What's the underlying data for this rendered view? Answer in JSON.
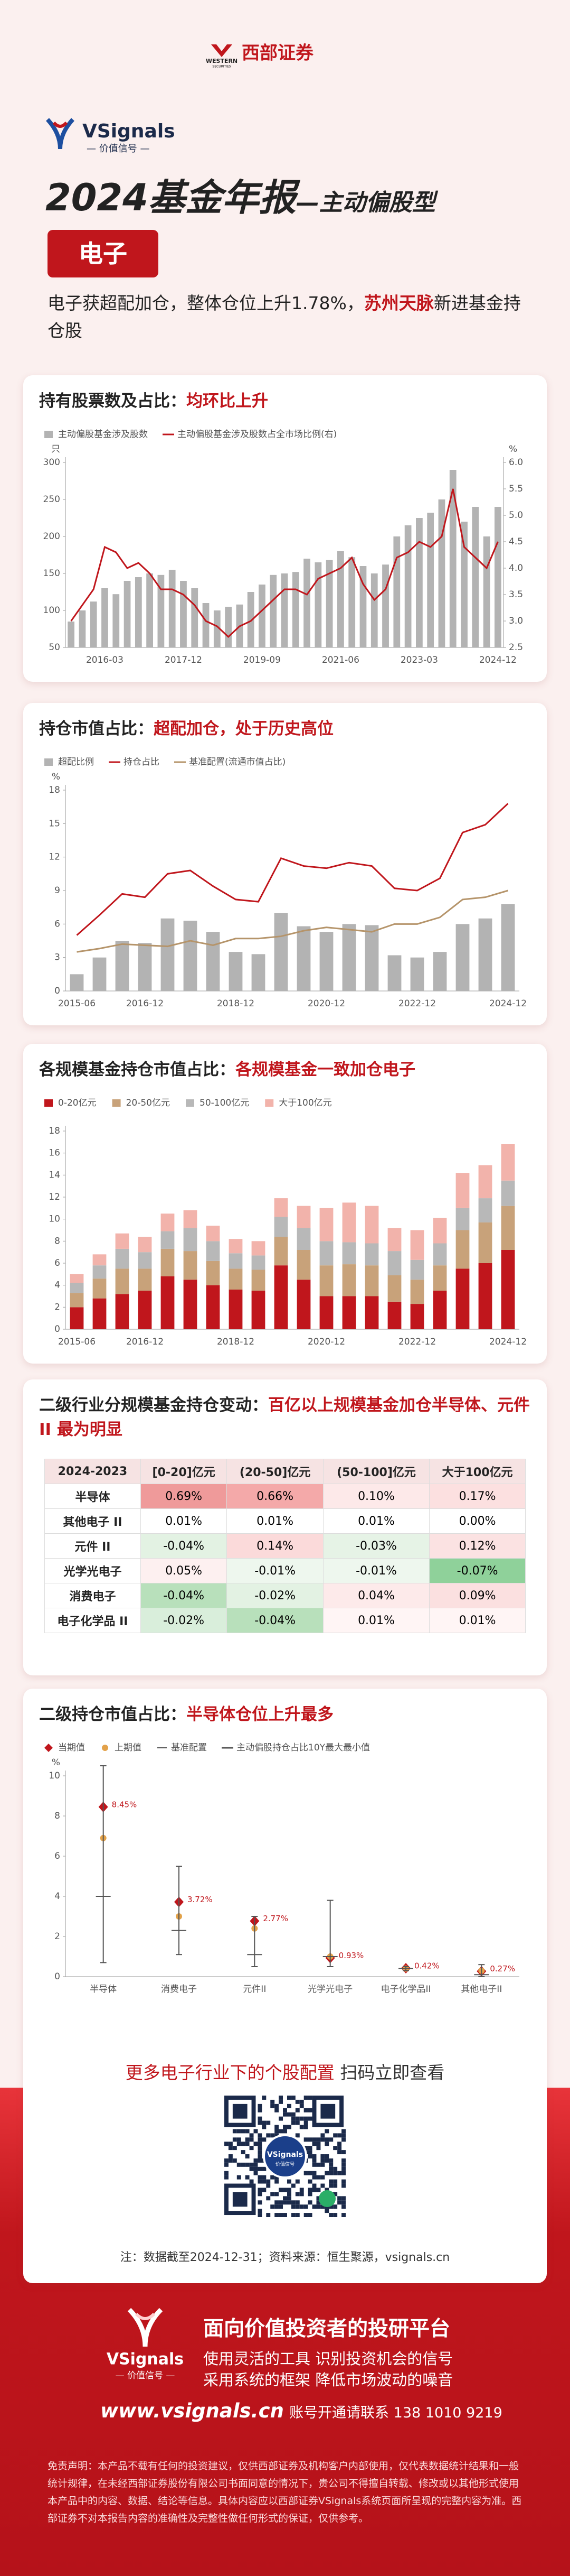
{
  "header": {
    "logo_en": "WESTERN",
    "logo_en2": "SECURITIES",
    "logo_cn": "西部证券",
    "brand": "VSignals",
    "brand_sub": "— 价值信号 —",
    "title": "2024基金年报",
    "title_suffix": "—主动偏股型",
    "tag": "电子",
    "summary": [
      "电子获超配加仓，整体仓位上升1.78%，",
      "苏州天脉",
      "新进基金持仓股"
    ]
  },
  "sections": [
    {
      "title": "持有股票数及占比：",
      "highlight": "均环比上升"
    },
    {
      "title": "持仓市值占比：",
      "highlight": "超配加仓，处于历史高位"
    },
    {
      "title": "各规模基金持仓市值占比：",
      "highlight": "各规模基金一致加仓电子"
    },
    {
      "title": "二级行业分规模基金持仓变动：",
      "highlight": "百亿以上规模基金加仓半导体、元件 II 最为明显"
    },
    {
      "title": "二级持仓市值占比：",
      "highlight": "半导体仓位上升最多"
    }
  ],
  "chart_data": [
    {
      "type": "combo",
      "ylabel": "只",
      "y2label": "%",
      "ylim": [
        50,
        300
      ],
      "yticks": [
        50,
        100,
        150,
        200,
        250,
        300
      ],
      "y2lim": [
        2.5,
        6.0
      ],
      "y2ticks": [
        2.5,
        {
          "value": 3,
          "label": "3.0"
        },
        3.5,
        {
          "value": 4,
          "label": "4.0"
        },
        4.5,
        {
          "value": 5,
          "label": "5.0"
        },
        5.5,
        {
          "value": 6,
          "label": "6.0"
        }
      ],
      "categories": [
        null,
        null,
        null,
        "2016-03",
        null,
        null,
        null,
        null,
        null,
        null,
        "2017-12",
        null,
        null,
        null,
        null,
        null,
        null,
        "2019-09",
        null,
        null,
        null,
        null,
        null,
        null,
        "2021-06",
        null,
        null,
        null,
        null,
        null,
        null,
        "2023-03",
        null,
        null,
        null,
        null,
        null,
        null,
        "2024-12"
      ],
      "series": [
        {
          "name": "主动偏股基金涉及股数",
          "type": "bar",
          "color": "#b3b3b3",
          "values": [
            85,
            100,
            112,
            130,
            122,
            140,
            145,
            150,
            148,
            155,
            140,
            130,
            110,
            100,
            105,
            108,
            125,
            135,
            148,
            150,
            152,
            170,
            165,
            168,
            180,
            172,
            160,
            150,
            162,
            200,
            215,
            225,
            232,
            250,
            290,
            220,
            240,
            200,
            240
          ]
        },
        {
          "name": "主动偏股基金涉及股数占全市场比例(右)",
          "type": "line",
          "axis": "y2",
          "color": "#c0161c",
          "values": [
            3.0,
            3.3,
            3.6,
            4.4,
            4.3,
            4.0,
            4.1,
            3.9,
            3.6,
            3.6,
            3.5,
            3.3,
            3.0,
            2.9,
            2.7,
            2.9,
            3.0,
            3.2,
            3.4,
            3.6,
            3.6,
            3.5,
            3.8,
            3.9,
            4.0,
            4.2,
            3.7,
            3.4,
            3.6,
            4.2,
            4.3,
            4.5,
            4.4,
            4.6,
            5.5,
            4.4,
            4.2,
            4.0,
            4.5
          ]
        }
      ]
    },
    {
      "type": "combo",
      "ylabel": "%",
      "ylim": [
        0,
        18
      ],
      "yticks": [
        0,
        3,
        6,
        9,
        12,
        15,
        18
      ],
      "categories": [
        "2015-06",
        null,
        null,
        "2016-12",
        null,
        null,
        null,
        "2018-12",
        null,
        null,
        null,
        "2020-12",
        null,
        null,
        null,
        "2022-12",
        null,
        null,
        null,
        "2024-12"
      ],
      "series": [
        {
          "name": "超配比例",
          "type": "bar",
          "color": "#b3b3b3",
          "values": [
            1.5,
            3.0,
            4.5,
            4.3,
            6.5,
            6.3,
            5.3,
            3.5,
            3.3,
            7.0,
            5.8,
            5.3,
            6.0,
            5.9,
            3.2,
            3.0,
            3.5,
            6.0,
            6.5,
            7.8
          ]
        },
        {
          "name": "持仓占比",
          "type": "line",
          "color": "#c0161c",
          "values": [
            5.0,
            6.8,
            8.7,
            8.4,
            10.5,
            10.8,
            9.4,
            8.2,
            8.0,
            11.9,
            11.2,
            11.0,
            11.5,
            11.2,
            9.2,
            9.0,
            10.1,
            14.2,
            14.9,
            16.8
          ]
        },
        {
          "name": "基准配置(流通市值占比)",
          "type": "line",
          "color": "#b5946a",
          "values": [
            3.5,
            3.8,
            4.2,
            4.1,
            4.0,
            4.5,
            4.1,
            4.7,
            4.7,
            4.9,
            5.4,
            5.7,
            5.5,
            5.3,
            6.0,
            6.0,
            6.6,
            8.2,
            8.4,
            9.0
          ]
        }
      ]
    },
    {
      "type": "stacked_bar",
      "ylim": [
        0,
        18
      ],
      "yticks": [
        0,
        2,
        4,
        6,
        8,
        10,
        12,
        14,
        16,
        18
      ],
      "categories": [
        "2015-06",
        null,
        null,
        "2016-12",
        null,
        null,
        null,
        "2018-12",
        null,
        null,
        null,
        "2020-12",
        null,
        null,
        null,
        "2022-12",
        null,
        null,
        null,
        "2024-12"
      ],
      "series": [
        {
          "name": "0-20亿元",
          "type": "bar",
          "color": "#c0161c",
          "values": [
            2.0,
            2.8,
            3.2,
            3.5,
            4.8,
            4.5,
            4.0,
            3.6,
            3.5,
            5.8,
            4.5,
            3.0,
            3.0,
            3.0,
            2.5,
            2.3,
            3.5,
            5.5,
            6.0,
            7.2
          ]
        },
        {
          "name": "20-50亿元",
          "type": "bar",
          "color": "#c8a27a",
          "values": [
            1.3,
            1.8,
            2.3,
            2.0,
            2.5,
            2.6,
            2.2,
            1.9,
            1.9,
            2.6,
            2.7,
            2.8,
            2.9,
            2.8,
            2.4,
            2.2,
            2.3,
            3.5,
            3.7,
            4.0
          ]
        },
        {
          "name": "50-100亿元",
          "type": "bar",
          "color": "#b8b8b8",
          "values": [
            0.9,
            1.2,
            1.8,
            1.5,
            1.6,
            2.1,
            1.8,
            1.4,
            1.3,
            1.8,
            2.0,
            2.2,
            2.0,
            2.0,
            2.2,
            1.8,
            2.0,
            2.0,
            2.2,
            2.3
          ]
        },
        {
          "name": "大于100亿元",
          "type": "bar",
          "color": "#f2b3ab",
          "values": [
            0.8,
            1.0,
            1.4,
            1.4,
            1.6,
            1.6,
            1.4,
            1.3,
            1.3,
            1.7,
            2.0,
            3.0,
            3.6,
            3.4,
            2.1,
            2.7,
            2.3,
            3.2,
            3.0,
            3.3
          ]
        }
      ]
    },
    {
      "type": "range",
      "ylabel": "%",
      "ylim": [
        0,
        10
      ],
      "yticks": [
        0,
        2,
        4,
        6,
        8,
        10
      ],
      "categories": [
        "半导体",
        "消费电子",
        "元件II",
        "光学光电子",
        "电子化学品II",
        "其他电子II"
      ],
      "series": [
        {
          "name": "当期值",
          "type": "diamond",
          "color": "#c0161c",
          "values": [
            8.45,
            3.72,
            2.77,
            0.93,
            0.42,
            0.27
          ],
          "value_labels": [
            "8.45%",
            "3.72%",
            "2.77%",
            "0.93%",
            "0.42%",
            "0.27%"
          ]
        },
        {
          "name": "上期值",
          "type": "dot",
          "color": "#e3a24a",
          "values": [
            6.9,
            3.0,
            2.4,
            1.0,
            0.4,
            0.3
          ]
        },
        {
          "name": "基准配置",
          "type": "dash",
          "color": "#555555",
          "values": [
            4.0,
            2.3,
            1.1,
            1.0,
            0.4,
            0.1
          ]
        },
        {
          "name": "主动偏股持仓占比10Y最大最小值",
          "type": "range",
          "color": "#555555",
          "low": [
            0.7,
            1.1,
            0.5,
            0.5,
            0.3,
            0.0
          ],
          "high": [
            10.5,
            5.5,
            3.0,
            3.8,
            0.5,
            0.6
          ]
        }
      ]
    }
  ],
  "table": {
    "header": [
      "2024-2023",
      "[0-20]亿元",
      "(20-50]亿元",
      "(50-100]亿元",
      "大于100亿元"
    ],
    "rows": [
      [
        "半导体",
        "0.69%",
        "0.66%",
        "0.10%",
        "0.17%"
      ],
      [
        "其他电子 II",
        "0.01%",
        "0.01%",
        "0.01%",
        "0.00%"
      ],
      [
        "元件 II",
        "-0.04%",
        "0.14%",
        "-0.03%",
        "0.12%"
      ],
      [
        "光学光电子",
        "0.05%",
        "-0.01%",
        "-0.01%",
        "-0.07%"
      ],
      [
        "消费电子",
        "-0.04%",
        "-0.02%",
        "0.04%",
        "0.09%"
      ],
      [
        "电子化学品 II",
        "-0.02%",
        "-0.04%",
        "0.01%",
        "0.01%"
      ]
    ],
    "cell_colors": [
      [
        "#ef9a9a",
        "#f4a9a9",
        "#fde9e9",
        "#fce0e0"
      ],
      [
        "#ffffff",
        "#ffffff",
        "#ffffff",
        "#ffffff"
      ],
      [
        "#e3f2e3",
        "#fbdada",
        "#e6f3e6",
        "#fbe2e2"
      ],
      [
        "#fdf0f0",
        "#eef7ee",
        "#eef7ee",
        "#8fd19a"
      ],
      [
        "#b8e0bb",
        "#e3f2e3",
        "#fdeaea",
        "#fbe0e0"
      ],
      [
        "#d9eedb",
        "#b8e0bb",
        "#fff5f5",
        "#fff5f5"
      ]
    ]
  },
  "cta": {
    "text": "更多电子行业下的个股配置",
    "action": "扫码立即查看",
    "qr_label": "VSignals",
    "qr_sub": "价值信号"
  },
  "note": "注：数据截至2024-12-31；资料来源：恒生聚源，vsignals.cn",
  "footer": {
    "brand": "VSignals",
    "brand_sub": "— 价值信号 —",
    "slogan": "面向价值投资者的投研平台",
    "line1": "使用灵活的工具  识别投资机会的信号",
    "line2": "采用系统的框架  降低市场波动的噪音",
    "website": "www.vsignals.cn",
    "contact": "账号开通请联系 138 1010 9219",
    "disclaimer": "免责声明：本产品不载有任何的投资建议，仅供西部证券及机构客户内部使用，仅代表数据统计结果和一般统计规律，在未经西部证券股份有限公司书面同意的情况下，贵公司不得擅自转载、修改或以其他形式使用本产品中的内容、数据、结论等信息。具体内容应以西部证券VSignals系统页面所呈现的完整内容为准。西部证券不对本报告内容的准确性及完整性做任何形式的保证，仅供参考。"
  }
}
